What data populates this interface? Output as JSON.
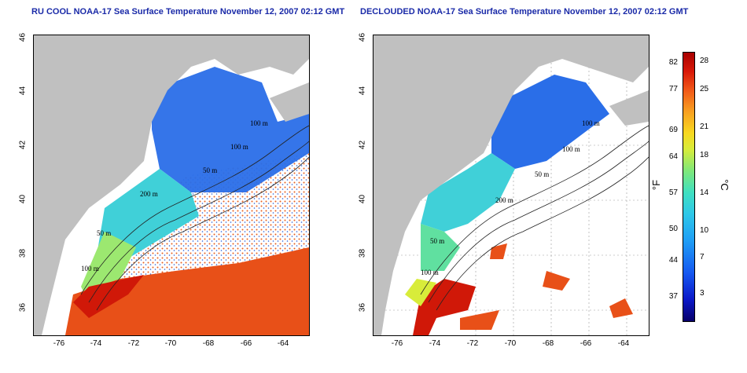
{
  "left_panel": {
    "title": "RU COOL NOAA-17 Sea Surface Temperature November 12, 2007 02:12 GMT",
    "contour_labels": [
      "100 m",
      "100 m",
      "50 m",
      "200 m",
      "50 m",
      "100 m"
    ]
  },
  "right_panel": {
    "title": "DECLOUDED NOAA-17 Sea Surface Temperature November 12, 2007 02:12 GMT",
    "contour_labels": [
      "100 m",
      "100 m",
      "50 m",
      "200 m",
      "50 m",
      "100 m"
    ]
  },
  "y_ticks": [
    "46",
    "44",
    "42",
    "40",
    "38",
    "36"
  ],
  "x_ticks": [
    "-76",
    "-74",
    "-72",
    "-70",
    "-68",
    "-66",
    "-64"
  ],
  "colorbar": {
    "f_unit": "°F",
    "c_unit": "°C",
    "f_ticks": [
      "82",
      "77",
      "69",
      "64",
      "57",
      "50",
      "44",
      "37"
    ],
    "c_ticks": [
      "28",
      "25",
      "21",
      "18",
      "14",
      "10",
      "7",
      "3"
    ]
  },
  "colors": {
    "land": "#c0c0c0",
    "cold": "#2a6ee8",
    "cool": "#2ec8e8",
    "mild": "#7fe87a",
    "warm": "#f0d020",
    "hot": "#e84010",
    "title": "#1a2aa8"
  }
}
